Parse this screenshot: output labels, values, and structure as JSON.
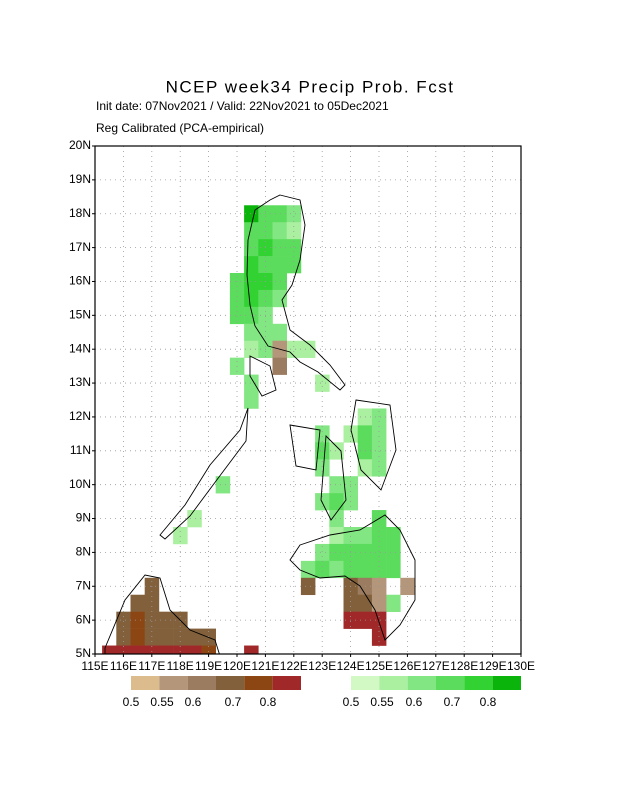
{
  "chart_data": {
    "type": "map",
    "title": "NCEP week34 Precip Prob. Fcst",
    "subtitle": "Init date: 07Nov2021 / Valid: 22Nov2021 to 05Dec2021",
    "note": "Reg Calibrated (PCA-empirical)",
    "xlim": [
      115,
      130
    ],
    "ylim": [
      5,
      20
    ],
    "xticks": [
      {
        "value": 115,
        "label": "115E"
      },
      {
        "value": 116,
        "label": "116E"
      },
      {
        "value": 117,
        "label": "117E"
      },
      {
        "value": 118,
        "label": "118E"
      },
      {
        "value": 119,
        "label": "119E"
      },
      {
        "value": 120,
        "label": "120E"
      },
      {
        "value": 121,
        "label": "121E"
      },
      {
        "value": 122,
        "label": "122E"
      },
      {
        "value": 123,
        "label": "123E"
      },
      {
        "value": 124,
        "label": "124E"
      },
      {
        "value": 125,
        "label": "125E"
      },
      {
        "value": 126,
        "label": "126E"
      },
      {
        "value": 127,
        "label": "127E"
      },
      {
        "value": 128,
        "label": "128E"
      },
      {
        "value": 129,
        "label": "129E"
      },
      {
        "value": 130,
        "label": "130E"
      }
    ],
    "yticks": [
      {
        "value": 5,
        "label": "5N"
      },
      {
        "value": 6,
        "label": "6N"
      },
      {
        "value": 7,
        "label": "7N"
      },
      {
        "value": 8,
        "label": "8N"
      },
      {
        "value": 9,
        "label": "9N"
      },
      {
        "value": 10,
        "label": "10N"
      },
      {
        "value": 11,
        "label": "11N"
      },
      {
        "value": 12,
        "label": "12N"
      },
      {
        "value": 13,
        "label": "13N"
      },
      {
        "value": 14,
        "label": "14N"
      },
      {
        "value": 15,
        "label": "15N"
      },
      {
        "value": 16,
        "label": "16N"
      },
      {
        "value": 17,
        "label": "17N"
      },
      {
        "value": 18,
        "label": "18N"
      },
      {
        "value": 19,
        "label": "19N"
      },
      {
        "value": 20,
        "label": "20N"
      }
    ],
    "grid": true,
    "cell_size": 0.5,
    "levels": [
      0.5,
      0.55,
      0.6,
      0.7,
      0.8
    ],
    "below_colors": [
      "#dcbc8c",
      "#b4967a",
      "#9c7c60",
      "#82603c",
      "#8c4614",
      "#a02828"
    ],
    "above_colors": [
      "#d2f8c4",
      "#aaf0a0",
      "#82e682",
      "#5cdc5c",
      "#32d232",
      "#0ab40a"
    ],
    "above_cells": [
      [
        120.5,
        18.0,
        0.85
      ],
      [
        121.0,
        18.0,
        0.65
      ],
      [
        121.5,
        18.0,
        0.6
      ],
      [
        122.0,
        18.0,
        0.55
      ],
      [
        120.5,
        17.5,
        0.65
      ],
      [
        121.0,
        17.5,
        0.65
      ],
      [
        121.5,
        17.5,
        0.55
      ],
      [
        122.0,
        17.5,
        0.52
      ],
      [
        120.5,
        17.0,
        0.65
      ],
      [
        121.0,
        17.0,
        0.75
      ],
      [
        121.5,
        17.0,
        0.65
      ],
      [
        122.0,
        17.0,
        0.6
      ],
      [
        120.5,
        16.5,
        0.75
      ],
      [
        121.0,
        16.5,
        0.65
      ],
      [
        121.5,
        16.5,
        0.65
      ],
      [
        122.0,
        16.5,
        0.6
      ],
      [
        120.0,
        16.0,
        0.6
      ],
      [
        120.5,
        16.0,
        0.75
      ],
      [
        121.0,
        16.0,
        0.75
      ],
      [
        121.5,
        16.0,
        0.6
      ],
      [
        120.0,
        15.5,
        0.6
      ],
      [
        120.5,
        15.5,
        0.75
      ],
      [
        121.0,
        15.5,
        0.6
      ],
      [
        121.5,
        15.5,
        0.55
      ],
      [
        120.0,
        15.0,
        0.65
      ],
      [
        120.5,
        15.0,
        0.6
      ],
      [
        121.0,
        15.0,
        0.55
      ],
      [
        120.5,
        14.5,
        0.55
      ],
      [
        121.0,
        14.5,
        0.55
      ],
      [
        121.5,
        14.5,
        0.55
      ],
      [
        120.5,
        14.0,
        0.52
      ],
      [
        121.0,
        14.0,
        0.55
      ],
      [
        122.0,
        14.0,
        0.52
      ],
      [
        122.5,
        14.0,
        0.52
      ],
      [
        120.0,
        13.5,
        0.55
      ],
      [
        120.5,
        13.0,
        0.55
      ],
      [
        123.0,
        13.0,
        0.52
      ],
      [
        120.5,
        12.5,
        0.55
      ],
      [
        124.5,
        12.0,
        0.52
      ],
      [
        125.0,
        12.0,
        0.55
      ],
      [
        123.0,
        11.5,
        0.55
      ],
      [
        124.0,
        11.5,
        0.52
      ],
      [
        124.5,
        11.5,
        0.6
      ],
      [
        125.0,
        11.5,
        0.55
      ],
      [
        123.0,
        11.0,
        0.6
      ],
      [
        123.5,
        11.0,
        0.52
      ],
      [
        124.5,
        11.0,
        0.6
      ],
      [
        125.0,
        11.0,
        0.55
      ],
      [
        123.0,
        10.5,
        0.55
      ],
      [
        124.5,
        10.5,
        0.52
      ],
      [
        125.0,
        10.5,
        0.55
      ],
      [
        119.5,
        10.0,
        0.55
      ],
      [
        123.5,
        10.0,
        0.55
      ],
      [
        124.0,
        10.0,
        0.55
      ],
      [
        123.0,
        9.5,
        0.55
      ],
      [
        123.5,
        9.5,
        0.6
      ],
      [
        124.0,
        9.5,
        0.55
      ],
      [
        118.5,
        9.0,
        0.52
      ],
      [
        123.5,
        9.0,
        0.55
      ],
      [
        125.0,
        9.0,
        0.65
      ],
      [
        118.0,
        8.5,
        0.52
      ],
      [
        123.5,
        8.5,
        0.52
      ],
      [
        124.0,
        8.5,
        0.55
      ],
      [
        124.5,
        8.5,
        0.55
      ],
      [
        125.0,
        8.5,
        0.6
      ],
      [
        125.5,
        8.5,
        0.6
      ],
      [
        123.0,
        8.0,
        0.55
      ],
      [
        123.5,
        8.0,
        0.6
      ],
      [
        124.0,
        8.0,
        0.6
      ],
      [
        124.5,
        8.0,
        0.6
      ],
      [
        125.0,
        8.0,
        0.6
      ],
      [
        125.5,
        8.0,
        0.6
      ],
      [
        122.5,
        7.5,
        0.55
      ],
      [
        123.0,
        7.5,
        0.6
      ],
      [
        123.5,
        7.5,
        0.55
      ],
      [
        124.0,
        7.5,
        0.6
      ],
      [
        124.5,
        7.5,
        0.6
      ],
      [
        125.0,
        7.5,
        0.6
      ],
      [
        125.5,
        7.5,
        0.6
      ],
      [
        125.5,
        6.5,
        0.55
      ]
    ],
    "below_cells": [
      [
        121.5,
        14.0,
        0.52
      ],
      [
        121.5,
        13.5,
        0.57
      ],
      [
        122.5,
        7.0,
        0.62
      ],
      [
        124.0,
        7.0,
        0.65
      ],
      [
        124.5,
        7.0,
        0.57
      ],
      [
        125.0,
        7.0,
        0.52
      ],
      [
        126.0,
        7.0,
        0.52
      ],
      [
        124.0,
        6.5,
        0.65
      ],
      [
        124.5,
        6.5,
        0.6
      ],
      [
        125.0,
        6.5,
        0.52
      ],
      [
        124.0,
        6.0,
        0.85
      ],
      [
        124.5,
        6.0,
        0.85
      ],
      [
        125.0,
        6.0,
        0.85
      ],
      [
        125.0,
        5.5,
        0.85
      ],
      [
        117.0,
        7.0,
        0.65
      ],
      [
        116.5,
        6.5,
        0.65
      ],
      [
        117.0,
        6.5,
        0.65
      ],
      [
        116.0,
        6.0,
        0.65
      ],
      [
        116.5,
        6.0,
        0.75
      ],
      [
        117.0,
        6.0,
        0.65
      ],
      [
        117.5,
        6.0,
        0.6
      ],
      [
        118.0,
        6.0,
        0.6
      ],
      [
        116.0,
        5.5,
        0.65
      ],
      [
        116.5,
        5.5,
        0.75
      ],
      [
        117.0,
        5.5,
        0.65
      ],
      [
        117.5,
        5.5,
        0.6
      ],
      [
        118.0,
        5.5,
        0.6
      ],
      [
        118.5,
        5.5,
        0.6
      ],
      [
        119.0,
        5.5,
        0.6
      ],
      [
        115.5,
        5.0,
        0.85
      ],
      [
        116.0,
        5.0,
        0.85
      ],
      [
        116.5,
        5.0,
        0.85
      ],
      [
        117.0,
        5.0,
        0.85
      ],
      [
        117.5,
        5.0,
        0.85
      ],
      [
        118.0,
        5.0,
        0.85
      ],
      [
        118.5,
        5.0,
        0.85
      ],
      [
        119.0,
        5.0,
        0.75
      ],
      [
        120.5,
        5.0,
        0.85
      ]
    ]
  }
}
